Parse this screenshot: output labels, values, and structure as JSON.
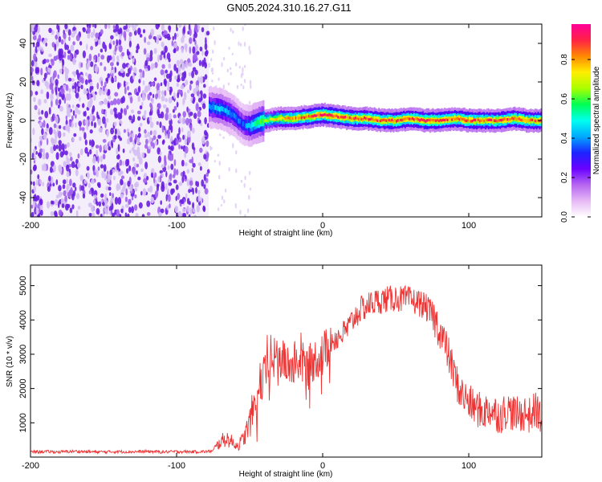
{
  "title": "GN05.2024.310.16.27.G11",
  "colors": {
    "snr_line": "#ee3333",
    "spectrum_low": "#d8c4f0",
    "spectrum_mid": "#7a2ee0",
    "spectrum_ridge": "#ff3b1e"
  },
  "colormap": [
    "#ffffff",
    "#e6b8f5",
    "#b566f0",
    "#6a00ff",
    "#1b24ff",
    "#00aaff",
    "#00ffee",
    "#00ff55",
    "#aaff00",
    "#ffee00",
    "#ff8800",
    "#ff2244",
    "#ff0099"
  ],
  "chart_data": [
    {
      "type": "heatmap",
      "xlabel": "Height of straight line (km)",
      "ylabel": "Frequency (Hz)",
      "xlim": [
        -200,
        150
      ],
      "ylim": [
        -50,
        50
      ],
      "xticks": [
        -200,
        -100,
        0,
        100
      ],
      "yticks": [
        -40,
        -20,
        0,
        20,
        40
      ],
      "grid": false,
      "noise_region_x": [
        -200,
        -78
      ],
      "ridge": {
        "x": [
          -78,
          -70,
          -62,
          -55,
          -50,
          -45,
          -40,
          -30,
          -20,
          -10,
          0,
          10,
          20,
          30,
          40,
          50,
          60,
          70,
          80,
          90,
          100,
          110,
          120,
          130,
          140,
          150
        ],
        "y": [
          7,
          6,
          3,
          -2,
          -3,
          -1,
          0,
          1,
          1,
          2,
          3,
          2,
          1,
          1,
          0,
          0,
          1,
          0,
          0,
          1,
          0,
          0,
          0,
          1,
          0,
          0
        ],
        "amplitude": [
          0.4,
          0.45,
          0.4,
          0.35,
          0.45,
          0.55,
          0.65,
          0.75,
          0.8,
          0.85,
          0.9,
          0.88,
          0.85,
          0.87,
          0.85,
          0.88,
          0.85,
          0.88,
          0.87,
          0.85,
          0.86,
          0.85,
          0.85,
          0.86,
          0.85,
          0.85
        ]
      },
      "colorbar": {
        "label": "Normalized spectral amplitude",
        "range": [
          0,
          0.98
        ],
        "ticks": [
          0.0,
          0.2,
          0.4,
          0.6,
          0.8
        ]
      }
    },
    {
      "type": "line",
      "xlabel": "Height of straight line (km)",
      "ylabel": "SNR (10 * v/v)",
      "xlim": [
        -200,
        150
      ],
      "ylim": [
        0,
        5600
      ],
      "xticks": [
        -200,
        -100,
        0,
        100
      ],
      "yticks": [
        1000,
        2000,
        3000,
        4000,
        5000
      ],
      "grid": false,
      "series": [
        {
          "x": [
            -200,
            -190,
            -180,
            -170,
            -160,
            -150,
            -140,
            -130,
            -120,
            -110,
            -100,
            -90,
            -80,
            -75,
            -70,
            -66,
            -62,
            -58,
            -54,
            -50,
            -46,
            -42,
            -38,
            -34,
            -30,
            -26,
            -22,
            -18,
            -14,
            -10,
            -6,
            -2,
            2,
            6,
            10,
            14,
            18,
            22,
            26,
            30,
            34,
            38,
            42,
            46,
            50,
            54,
            58,
            62,
            66,
            70,
            74,
            78,
            82,
            86,
            90,
            94,
            98,
            102,
            106,
            110,
            114,
            118,
            122,
            126,
            130,
            134,
            138,
            142,
            146,
            150
          ],
          "y": [
            150,
            160,
            150,
            170,
            155,
            150,
            160,
            155,
            165,
            150,
            160,
            155,
            160,
            180,
            400,
            500,
            400,
            300,
            500,
            900,
            1500,
            2200,
            2600,
            2900,
            3000,
            2800,
            2700,
            2900,
            2800,
            2700,
            2900,
            3000,
            3200,
            3400,
            3500,
            3600,
            3800,
            4100,
            4300,
            4400,
            4500,
            4550,
            4600,
            4600,
            4650,
            4600,
            4600,
            4550,
            4500,
            4400,
            4200,
            3900,
            3500,
            3000,
            2400,
            1900,
            1700,
            1500,
            1400,
            1300,
            1400,
            1300,
            1200,
            1400,
            1300,
            1200,
            1300,
            1200,
            1400,
            1100
          ]
        }
      ]
    }
  ]
}
